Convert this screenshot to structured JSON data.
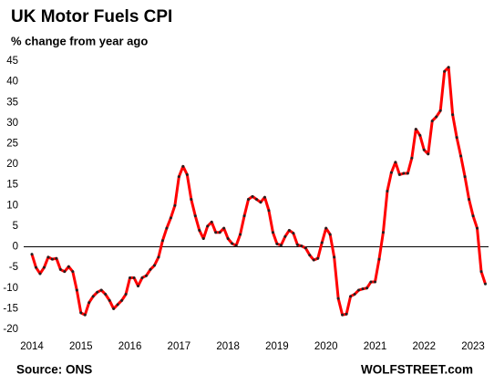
{
  "chart_data": {
    "type": "line",
    "title": "UK Motor  Fuels CPI",
    "subtitle": "% change from year ago",
    "source": "Source: ONS",
    "watermark": "WOLFSTREET.com",
    "categories": [
      "2014",
      null,
      null,
      null,
      null,
      null,
      null,
      null,
      null,
      null,
      null,
      null,
      "2015",
      null,
      null,
      null,
      null,
      null,
      null,
      null,
      null,
      null,
      null,
      null,
      "2016",
      null,
      null,
      null,
      null,
      null,
      null,
      null,
      null,
      null,
      null,
      null,
      "2017",
      null,
      null,
      null,
      null,
      null,
      null,
      null,
      null,
      null,
      null,
      null,
      "2018",
      null,
      null,
      null,
      null,
      null,
      null,
      null,
      null,
      null,
      null,
      null,
      "2019",
      null,
      null,
      null,
      null,
      null,
      null,
      null,
      null,
      null,
      null,
      null,
      "2020",
      null,
      null,
      null,
      null,
      null,
      null,
      null,
      null,
      null,
      null,
      null,
      "2021",
      null,
      null,
      null,
      null,
      null,
      null,
      null,
      null,
      null,
      null,
      null,
      "2022",
      null,
      null,
      null,
      null,
      null,
      null,
      null,
      null,
      null,
      null,
      null,
      "2023",
      null,
      null,
      null
    ],
    "series": [
      {
        "color": "#ff0000",
        "marker_color": "#222222",
        "values": [
          -1.8,
          -5,
          -6.5,
          -5,
          -2.5,
          -3,
          -2.8,
          -5.5,
          -6,
          -4.8,
          -6,
          -10.5,
          -16,
          -16.5,
          -13.5,
          -12,
          -11,
          -10.5,
          -11.5,
          -13,
          -15,
          -14,
          -13,
          -11.5,
          -7.5,
          -7.5,
          -9.5,
          -7.5,
          -7,
          -5.5,
          -4.5,
          -2.5,
          1.5,
          4.5,
          7,
          10,
          17,
          19.5,
          17.5,
          11.5,
          7.5,
          4,
          2,
          5,
          6,
          3.5,
          3.5,
          4.5,
          2,
          0.8,
          0.3,
          3,
          7.5,
          11.5,
          12.2,
          11.5,
          10.8,
          12,
          8.8,
          3.5,
          0.7,
          0.4,
          2.5,
          4,
          3.3,
          0.5,
          0.2,
          -0.3,
          -2,
          -3.2,
          -2.8,
          1,
          4.5,
          3,
          -2.5,
          -12.5,
          -16.5,
          -16.3,
          -12,
          -11.5,
          -10.5,
          -10.2,
          -10,
          -8.5,
          -8.5,
          -3,
          3.5,
          13.5,
          18,
          20.5,
          17.5,
          17.8,
          17.8,
          21.5,
          28.5,
          27,
          23.5,
          22.5,
          30.5,
          31.5,
          33,
          42.5,
          43.5,
          32,
          26.5,
          22,
          17,
          11.5,
          7.5,
          4.5,
          -6,
          -9
        ]
      }
    ],
    "ylim": [
      -20,
      45
    ],
    "yticks": [
      -20,
      -15,
      -10,
      -5,
      0,
      5,
      10,
      15,
      20,
      25,
      30,
      35,
      40,
      45
    ],
    "reference_line": 0,
    "grid": false
  }
}
